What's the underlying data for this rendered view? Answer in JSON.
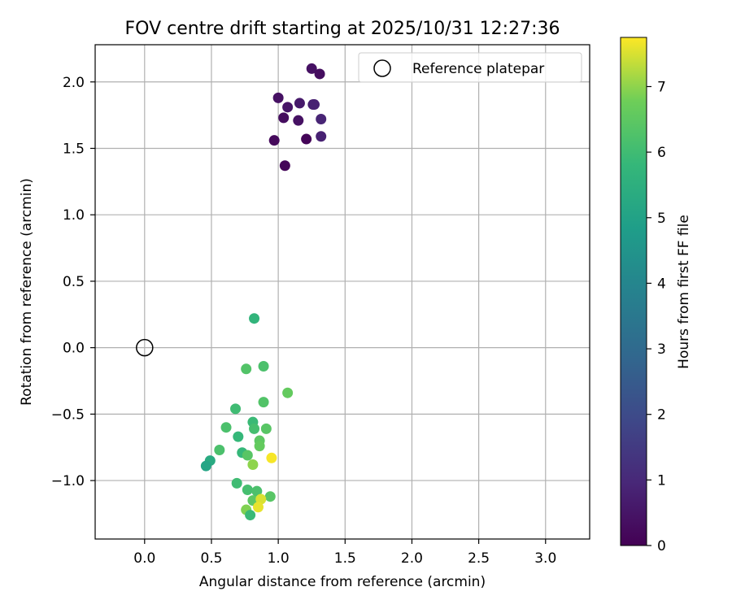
{
  "chart_data": {
    "type": "scatter",
    "title": "FOV centre drift starting at 2025/10/31 12:27:36",
    "xlabel": "Angular distance from reference (arcmin)",
    "ylabel": "Rotation from reference (arcmin)",
    "xlim": [
      -0.37,
      3.33
    ],
    "ylim": [
      -1.44,
      2.28
    ],
    "xticks": [
      "0.0",
      "0.5",
      "1.0",
      "1.5",
      "2.0",
      "2.5",
      "3.0"
    ],
    "yticks": [
      "−1.0",
      "−0.5",
      "0.0",
      "0.5",
      "1.0",
      "1.5",
      "2.0"
    ],
    "grid": true,
    "legend": {
      "position": "top-right",
      "entries": [
        "Reference platepar"
      ]
    },
    "colorbar": {
      "label": "Hours from first FF file",
      "colormap": "viridis",
      "range": [
        0,
        7.75
      ],
      "ticks": [
        "0",
        "1",
        "2",
        "3",
        "4",
        "5",
        "6",
        "7"
      ]
    },
    "reference_point": {
      "x": 0.0,
      "y": 0.0
    },
    "points": [
      {
        "x": 1.25,
        "y": 2.1,
        "hours": 0.4
      },
      {
        "x": 1.31,
        "y": 2.06,
        "hours": 0.3
      },
      {
        "x": 1.0,
        "y": 1.88,
        "hours": 0.4
      },
      {
        "x": 1.07,
        "y": 1.81,
        "hours": 0.5
      },
      {
        "x": 1.16,
        "y": 1.84,
        "hours": 0.6
      },
      {
        "x": 1.26,
        "y": 1.83,
        "hours": 0.7
      },
      {
        "x": 1.27,
        "y": 1.83,
        "hours": 0.8
      },
      {
        "x": 1.04,
        "y": 1.73,
        "hours": 0.3
      },
      {
        "x": 1.15,
        "y": 1.71,
        "hours": 0.4
      },
      {
        "x": 1.32,
        "y": 1.72,
        "hours": 0.9
      },
      {
        "x": 0.97,
        "y": 1.56,
        "hours": 0.2
      },
      {
        "x": 1.21,
        "y": 1.57,
        "hours": 0.1
      },
      {
        "x": 1.32,
        "y": 1.59,
        "hours": 0.8
      },
      {
        "x": 1.05,
        "y": 1.37,
        "hours": 0.1
      },
      {
        "x": 0.82,
        "y": 0.22,
        "hours": 5.7
      },
      {
        "x": 0.76,
        "y": -0.16,
        "hours": 6.3
      },
      {
        "x": 0.89,
        "y": -0.14,
        "hours": 6.2
      },
      {
        "x": 1.07,
        "y": -0.34,
        "hours": 6.6
      },
      {
        "x": 0.89,
        "y": -0.41,
        "hours": 6.3
      },
      {
        "x": 0.68,
        "y": -0.46,
        "hours": 6.0
      },
      {
        "x": 0.81,
        "y": -0.56,
        "hours": 5.9
      },
      {
        "x": 0.61,
        "y": -0.6,
        "hours": 6.2
      },
      {
        "x": 0.82,
        "y": -0.61,
        "hours": 6.1
      },
      {
        "x": 0.91,
        "y": -0.61,
        "hours": 6.4
      },
      {
        "x": 0.7,
        "y": -0.67,
        "hours": 5.8
      },
      {
        "x": 0.86,
        "y": -0.7,
        "hours": 6.5
      },
      {
        "x": 0.86,
        "y": -0.74,
        "hours": 6.6
      },
      {
        "x": 0.56,
        "y": -0.77,
        "hours": 6.2
      },
      {
        "x": 0.73,
        "y": -0.79,
        "hours": 5.8
      },
      {
        "x": 0.77,
        "y": -0.81,
        "hours": 6.4
      },
      {
        "x": 0.95,
        "y": -0.83,
        "hours": 7.7
      },
      {
        "x": 0.49,
        "y": -0.85,
        "hours": 5.3
      },
      {
        "x": 0.46,
        "y": -0.89,
        "hours": 5.1
      },
      {
        "x": 0.81,
        "y": -0.88,
        "hours": 7.0
      },
      {
        "x": 0.69,
        "y": -1.02,
        "hours": 6.0
      },
      {
        "x": 0.77,
        "y": -1.07,
        "hours": 6.1
      },
      {
        "x": 0.84,
        "y": -1.08,
        "hours": 6.2
      },
      {
        "x": 0.94,
        "y": -1.12,
        "hours": 6.4
      },
      {
        "x": 0.81,
        "y": -1.15,
        "hours": 6.5
      },
      {
        "x": 0.87,
        "y": -1.14,
        "hours": 7.5
      },
      {
        "x": 0.76,
        "y": -1.22,
        "hours": 6.9
      },
      {
        "x": 0.85,
        "y": -1.2,
        "hours": 7.6
      },
      {
        "x": 0.79,
        "y": -1.26,
        "hours": 5.9
      }
    ]
  }
}
